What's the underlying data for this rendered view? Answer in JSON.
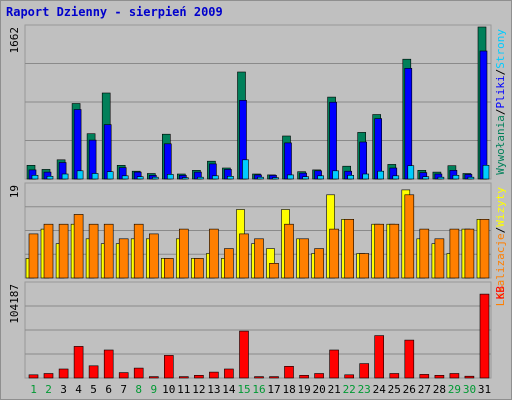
{
  "chart_data": {
    "title": "Raport Dzienny -  sierpień 2009",
    "type": "bar",
    "colors": {
      "background": "#c0c0c0",
      "title": "#0000cc",
      "grid": "#8a8a8a",
      "bar_outline": "#000000",
      "wizyty": "#ff7f00",
      "unikalni": "#ffff00",
      "strony": "#00ccff",
      "pliki": "#0000ff",
      "wywolania": "#00805a",
      "kb": "#ff0000",
      "weekend": "#009933",
      "weekday": "#000000"
    },
    "panels": [
      {
        "id": "hits",
        "ymax_label": "1662",
        "ymax": 1662,
        "legend": [
          {
            "text": "Wywołania",
            "color": "#00805a"
          },
          {
            "text": "/",
            "color": "#000000"
          },
          {
            "text": "Pliki",
            "color": "#0000ff"
          },
          {
            "text": "/",
            "color": "#000000"
          },
          {
            "text": "Strony",
            "color": "#00ccff"
          }
        ],
        "series": [
          {
            "key": "wywolania",
            "color": "#00805a",
            "values": [
              150,
              105,
              210,
              825,
              495,
              940,
              150,
              85,
              60,
              490,
              55,
              95,
              195,
              120,
              1170,
              55,
              45,
              470,
              80,
              100,
              895,
              140,
              510,
              705,
              160,
              1310,
              95,
              75,
              145,
              60,
              1662
            ]
          },
          {
            "key": "pliki",
            "color": "#0000ff",
            "values": [
              100,
              75,
              180,
              760,
              425,
              595,
              125,
              75,
              40,
              385,
              40,
              75,
              165,
              105,
              860,
              45,
              40,
              395,
              65,
              90,
              840,
              85,
              405,
              660,
              120,
              1210,
              70,
              55,
              95,
              50,
              1400
            ]
          },
          {
            "key": "strony",
            "color": "#00ccff",
            "values": [
              40,
              30,
              55,
              90,
              60,
              80,
              35,
              25,
              20,
              50,
              15,
              20,
              35,
              30,
              210,
              20,
              15,
              45,
              25,
              35,
              90,
              40,
              55,
              85,
              35,
              145,
              25,
              20,
              40,
              20,
              150
            ]
          }
        ]
      },
      {
        "id": "visits",
        "ymax_label": "19",
        "ymax": 19,
        "legend": [
          {
            "text": "Lokalizacje",
            "color": "#ff7f00"
          },
          {
            "text": "/",
            "color": "#000000"
          },
          {
            "text": "Wizyty",
            "color": "#ffff00"
          }
        ],
        "series": [
          {
            "key": "unikalni",
            "color": "#ffff00",
            "values": [
              4,
              10,
              7,
              11,
              8,
              7,
              7,
              8,
              8,
              4,
              8,
              4,
              5,
              4,
              14,
              7,
              6,
              14,
              8,
              5,
              17,
              12,
              5,
              11,
              11,
              18,
              8,
              7,
              5,
              10,
              12
            ]
          },
          {
            "key": "wizyty",
            "color": "#ff7f00",
            "values": [
              9,
              11,
              11,
              13,
              11,
              11,
              8,
              11,
              9,
              4,
              10,
              4,
              10,
              6,
              9,
              8,
              3,
              11,
              8,
              6,
              10,
              12,
              5,
              11,
              11,
              17,
              10,
              8,
              10,
              10,
              12
            ]
          }
        ]
      },
      {
        "id": "kb",
        "ymax_label": "104187",
        "ymax": 104187,
        "legend": [
          {
            "text": "KB",
            "color": "#ff0000"
          }
        ],
        "series": [
          {
            "key": "kb",
            "color": "#ff0000",
            "values": [
              3500,
              5000,
              10000,
              35000,
              13500,
              31000,
              6000,
              11000,
              1500,
              25000,
              1500,
              3000,
              6500,
              10000,
              52000,
              1500,
              1500,
              13000,
              3000,
              5000,
              31000,
              3500,
              16000,
              47000,
              5000,
              42000,
              4000,
              3000,
              5000,
              2000,
              93000
            ]
          }
        ]
      }
    ],
    "days": [
      "1",
      "2",
      "3",
      "4",
      "5",
      "6",
      "7",
      "8",
      "9",
      "10",
      "11",
      "12",
      "13",
      "14",
      "15",
      "16",
      "17",
      "18",
      "19",
      "20",
      "21",
      "22",
      "23",
      "24",
      "25",
      "26",
      "27",
      "28",
      "29",
      "30",
      "31"
    ],
    "weekend_days": [
      "1",
      "2",
      "8",
      "9",
      "15",
      "16",
      "22",
      "23",
      "29",
      "30"
    ]
  }
}
